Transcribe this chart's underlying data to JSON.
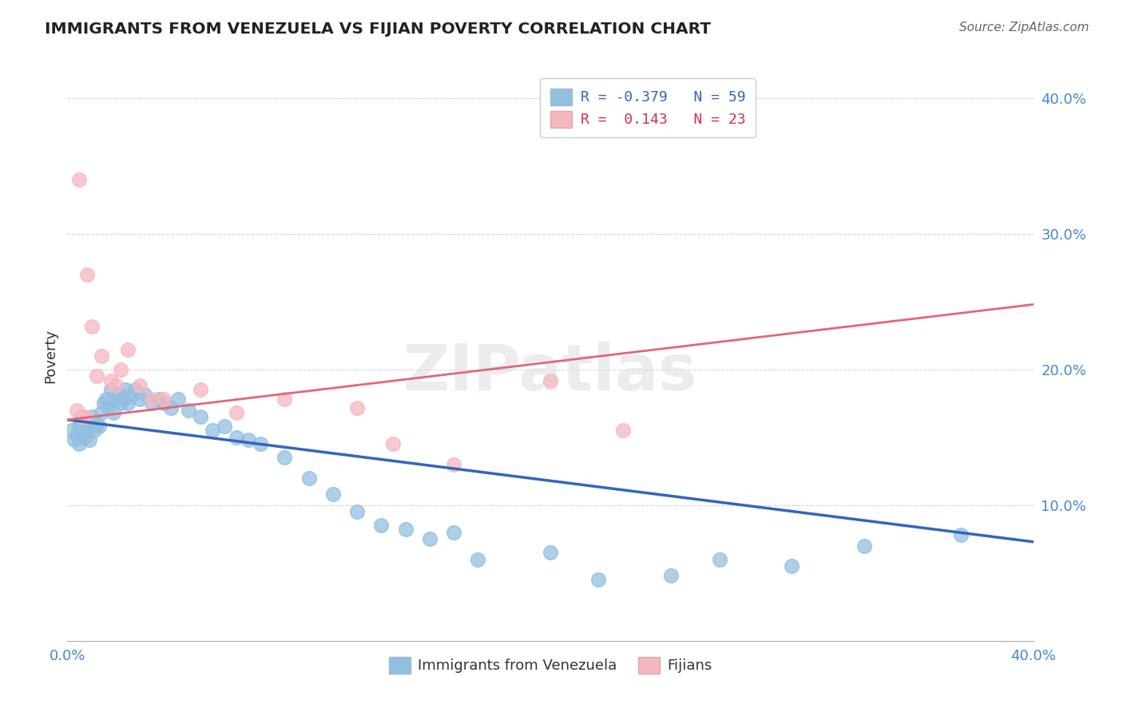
{
  "title": "IMMIGRANTS FROM VENEZUELA VS FIJIAN POVERTY CORRELATION CHART",
  "source": "Source: ZipAtlas.com",
  "ylabel": "Poverty",
  "xlim": [
    0.0,
    0.4
  ],
  "ylim": [
    0.0,
    0.42
  ],
  "yticks": [
    0.1,
    0.2,
    0.3,
    0.4
  ],
  "ytick_labels": [
    "10.0%",
    "20.0%",
    "30.0%",
    "40.0%"
  ],
  "grid_color": "#cccccc",
  "background_color": "#ffffff",
  "watermark": "ZIPatlas",
  "blue_R": -0.379,
  "blue_N": 59,
  "pink_R": 0.143,
  "pink_N": 23,
  "blue_color": "#92bfe0",
  "pink_color": "#f5b8bf",
  "blue_line_color": "#3366bb",
  "pink_line_color": "#e06878",
  "blue_points_x": [
    0.002,
    0.003,
    0.004,
    0.005,
    0.005,
    0.006,
    0.007,
    0.008,
    0.008,
    0.009,
    0.01,
    0.01,
    0.011,
    0.012,
    0.013,
    0.014,
    0.015,
    0.016,
    0.017,
    0.018,
    0.019,
    0.02,
    0.021,
    0.022,
    0.023,
    0.024,
    0.025,
    0.026,
    0.028,
    0.03,
    0.032,
    0.035,
    0.038,
    0.04,
    0.043,
    0.046,
    0.05,
    0.055,
    0.06,
    0.065,
    0.07,
    0.075,
    0.08,
    0.09,
    0.1,
    0.11,
    0.12,
    0.13,
    0.14,
    0.15,
    0.16,
    0.17,
    0.2,
    0.22,
    0.25,
    0.27,
    0.3,
    0.33,
    0.37
  ],
  "blue_points_y": [
    0.155,
    0.148,
    0.152,
    0.158,
    0.145,
    0.162,
    0.15,
    0.155,
    0.16,
    0.148,
    0.158,
    0.165,
    0.155,
    0.16,
    0.158,
    0.168,
    0.175,
    0.178,
    0.172,
    0.185,
    0.168,
    0.178,
    0.182,
    0.175,
    0.178,
    0.185,
    0.175,
    0.18,
    0.185,
    0.178,
    0.182,
    0.175,
    0.178,
    0.175,
    0.172,
    0.178,
    0.17,
    0.165,
    0.155,
    0.158,
    0.15,
    0.148,
    0.145,
    0.135,
    0.12,
    0.108,
    0.095,
    0.085,
    0.082,
    0.075,
    0.08,
    0.06,
    0.065,
    0.045,
    0.048,
    0.06,
    0.055,
    0.07,
    0.078
  ],
  "pink_points_x": [
    0.004,
    0.005,
    0.006,
    0.007,
    0.008,
    0.01,
    0.012,
    0.014,
    0.018,
    0.02,
    0.022,
    0.025,
    0.03,
    0.035,
    0.04,
    0.055,
    0.07,
    0.09,
    0.12,
    0.135,
    0.16,
    0.2,
    0.23
  ],
  "pink_points_y": [
    0.17,
    0.34,
    0.165,
    0.165,
    0.27,
    0.232,
    0.195,
    0.21,
    0.192,
    0.188,
    0.2,
    0.215,
    0.188,
    0.178,
    0.178,
    0.185,
    0.168,
    0.178,
    0.172,
    0.145,
    0.13,
    0.192,
    0.155
  ],
  "blue_line_x": [
    0.0,
    0.4
  ],
  "blue_line_y": [
    0.163,
    0.073
  ],
  "pink_line_x": [
    0.0,
    0.4
  ],
  "pink_line_y": [
    0.163,
    0.248
  ]
}
